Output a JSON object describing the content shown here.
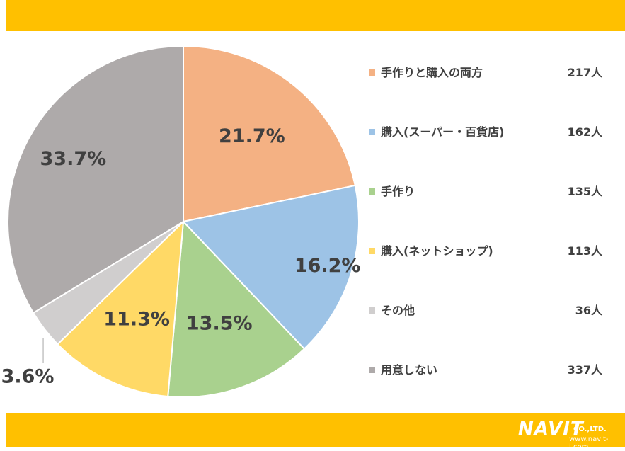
{
  "chart_data": {
    "type": "pie",
    "slices": [
      {
        "label": "手作りと購入の両方",
        "count": "217人",
        "value": 21.7,
        "pct_label": "21.7%",
        "color": "#F4B183"
      },
      {
        "label": "購入(スーパー・百貨店)",
        "count": "162人",
        "value": 16.2,
        "pct_label": "16.2%",
        "color": "#9DC3E6"
      },
      {
        "label": "手作り",
        "count": "135人",
        "value": 13.5,
        "pct_label": "13.5%",
        "color": "#A9D18E"
      },
      {
        "label": "購入(ネットショップ)",
        "count": "113人",
        "value": 11.3,
        "pct_label": "11.3%",
        "color": "#FFD966"
      },
      {
        "label": "その他",
        "count": "36人",
        "value": 3.6,
        "pct_label": "3.6%",
        "color": "#D0CECE"
      },
      {
        "label": "用意しない",
        "count": "337人",
        "value": 33.7,
        "pct_label": "33.7%",
        "color": "#AEAAAA"
      }
    ],
    "legend_position": "right"
  },
  "branding": {
    "logo_text": "NAVIT",
    "logo_suffix": "CO.,LTD.",
    "url": "www.navit-j.com",
    "band_color": "#FFC000"
  }
}
